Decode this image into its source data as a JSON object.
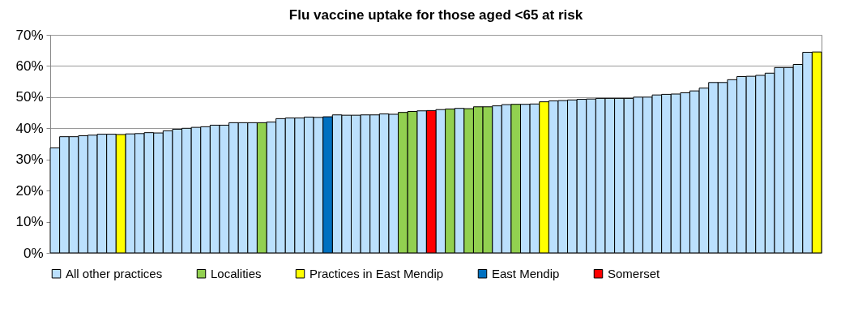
{
  "chart_data": {
    "type": "bar",
    "title": "Flu vaccine uptake for those aged <65 at risk",
    "categories": [
      null,
      null,
      null,
      null,
      null,
      null,
      null,
      null,
      null,
      null,
      null,
      null,
      null,
      null,
      null,
      null,
      null,
      null,
      null,
      null,
      null,
      null,
      null,
      null,
      null,
      null,
      null,
      null,
      null,
      null,
      null,
      null,
      null,
      null,
      null,
      null,
      null,
      null,
      null,
      null,
      null,
      null,
      null,
      null,
      null,
      null,
      null,
      null,
      null,
      null,
      null,
      null,
      null,
      null,
      null,
      null,
      null,
      null,
      null,
      null,
      null,
      null,
      null,
      null,
      null,
      null,
      null,
      null,
      null,
      null,
      null,
      null,
      null,
      null,
      null,
      null,
      null,
      null,
      null,
      null,
      null,
      null
    ],
    "series": [
      {
        "name": "All other practices",
        "color": "#bbe0fd",
        "values": [
          33.7,
          37.3,
          37.3,
          37.6,
          37.8,
          38.1,
          38.1,
          null,
          38.2,
          38.3,
          38.6,
          38.5,
          39.2,
          39.7,
          40.0,
          40.3,
          40.5,
          41.0,
          41.0,
          41.8,
          41.8,
          41.8,
          null,
          42.0,
          43.1,
          43.3,
          43.3,
          43.6,
          43.5,
          null,
          44.3,
          44.2,
          44.2,
          44.3,
          44.3,
          44.6,
          44.5,
          null,
          null,
          45.6,
          null,
          46.0,
          null,
          46.4,
          null,
          null,
          null,
          47.2,
          47.6,
          null,
          47.7,
          47.8,
          null,
          48.8,
          48.9,
          49.1,
          49.3,
          49.4,
          49.6,
          49.6,
          49.6,
          49.6,
          50.0,
          50.0,
          50.7,
          50.9,
          51.0,
          51.4,
          52.0,
          52.9,
          54.7,
          54.7,
          55.6,
          56.6,
          56.7,
          57.0,
          57.7,
          59.5,
          59.5,
          60.5,
          64.4,
          null
        ]
      },
      {
        "name": "Localities",
        "color": "#92d050",
        "values": [
          null,
          null,
          null,
          null,
          null,
          null,
          null,
          null,
          null,
          null,
          null,
          null,
          null,
          null,
          null,
          null,
          null,
          null,
          null,
          null,
          null,
          null,
          41.8,
          null,
          null,
          null,
          null,
          null,
          null,
          null,
          null,
          null,
          null,
          null,
          null,
          null,
          null,
          45.1,
          45.4,
          null,
          null,
          null,
          46.2,
          null,
          46.3,
          46.9,
          46.9,
          null,
          null,
          47.7,
          null,
          null,
          null,
          null,
          null,
          null,
          null,
          null,
          null,
          null,
          null,
          null,
          null,
          null,
          null,
          null,
          null,
          null,
          null,
          null,
          null,
          null,
          null,
          null,
          null,
          null,
          null,
          null,
          null,
          null,
          null,
          null
        ]
      },
      {
        "name": "Practices in East Mendip",
        "color": "#ffff00",
        "values": [
          null,
          null,
          null,
          null,
          null,
          null,
          null,
          38.0,
          null,
          null,
          null,
          null,
          null,
          null,
          null,
          null,
          null,
          null,
          null,
          null,
          null,
          null,
          null,
          null,
          null,
          null,
          null,
          null,
          null,
          null,
          null,
          null,
          null,
          null,
          null,
          null,
          null,
          null,
          null,
          null,
          null,
          null,
          null,
          null,
          null,
          null,
          null,
          null,
          null,
          null,
          null,
          null,
          48.5,
          null,
          null,
          null,
          null,
          null,
          null,
          null,
          null,
          null,
          null,
          null,
          null,
          null,
          null,
          null,
          null,
          null,
          null,
          null,
          null,
          null,
          null,
          null,
          null,
          null,
          null,
          null,
          null,
          64.5
        ]
      },
      {
        "name": "East Mendip",
        "color": "#0070c0",
        "values": [
          null,
          null,
          null,
          null,
          null,
          null,
          null,
          null,
          null,
          null,
          null,
          null,
          null,
          null,
          null,
          null,
          null,
          null,
          null,
          null,
          null,
          null,
          null,
          null,
          null,
          null,
          null,
          null,
          null,
          43.7,
          null,
          null,
          null,
          null,
          null,
          null,
          null,
          null,
          null,
          null,
          null,
          null,
          null,
          null,
          null,
          null,
          null,
          null,
          null,
          null,
          null,
          null,
          null,
          null,
          null,
          null,
          null,
          null,
          null,
          null,
          null,
          null,
          null,
          null,
          null,
          null,
          null,
          null,
          null,
          null,
          null,
          null,
          null,
          null,
          null,
          null,
          null,
          null,
          null,
          null,
          null,
          null
        ]
      },
      {
        "name": "Somerset",
        "color": "#ff0000",
        "values": [
          null,
          null,
          null,
          null,
          null,
          null,
          null,
          null,
          null,
          null,
          null,
          null,
          null,
          null,
          null,
          null,
          null,
          null,
          null,
          null,
          null,
          null,
          null,
          null,
          null,
          null,
          null,
          null,
          null,
          null,
          null,
          null,
          null,
          null,
          null,
          null,
          null,
          null,
          null,
          null,
          45.7,
          null,
          null,
          null,
          null,
          null,
          null,
          null,
          null,
          null,
          null,
          null,
          null,
          null,
          null,
          null,
          null,
          null,
          null,
          null,
          null,
          null,
          null,
          null,
          null,
          null,
          null,
          null,
          null,
          null,
          null,
          null,
          null,
          null,
          null,
          null,
          null,
          null,
          null,
          null,
          null,
          null
        ]
      }
    ],
    "ylim": [
      0,
      70
    ],
    "yticks": [
      {
        "value": 0,
        "label": "0%"
      },
      {
        "value": 10,
        "label": "10%"
      },
      {
        "value": 20,
        "label": "20%"
      },
      {
        "value": 30,
        "label": "30%"
      },
      {
        "value": 40,
        "label": "40%"
      },
      {
        "value": 50,
        "label": "50%"
      },
      {
        "value": 60,
        "label": "60%"
      },
      {
        "value": 70,
        "label": "70%"
      }
    ],
    "grid": "y",
    "legend": "bottom",
    "tick_labels": "y"
  }
}
